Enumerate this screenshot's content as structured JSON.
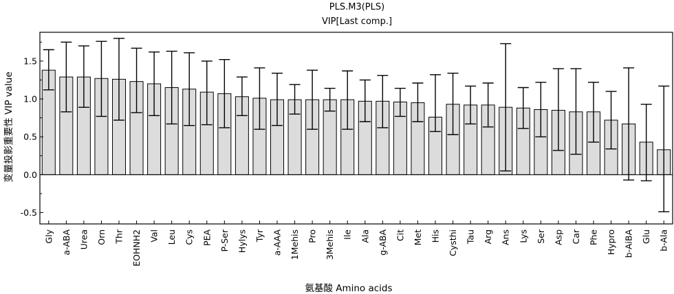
{
  "chart_data": {
    "type": "bar",
    "title": "PLS.M3(PLS)",
    "subtitle": "VIP[Last comp.]",
    "xlabel": "氨基酸 Amino acids",
    "ylabel": "变量投影重要性 VIP value",
    "ylim": [
      -0.65,
      1.88
    ],
    "yticks": [
      -0.5,
      0.0,
      0.5,
      1.0,
      1.5
    ],
    "ytick_labels": [
      "-0.5",
      "0.0",
      "0.5",
      "1.0",
      "1.5"
    ],
    "grid": false,
    "bar_color": "#dcdcdc",
    "categories": [
      "Gly",
      "a-ABA",
      "Urea",
      "Orn",
      "Thr",
      "EOHNH2",
      "Val",
      "Leu",
      "Cys",
      "PEA",
      "P-Ser",
      "Hylys",
      "Tyr",
      "a-AAA",
      "1Mehis",
      "Pro",
      "3Mehis",
      "Ile",
      "Ala",
      "g-ABA",
      "Cit",
      "Met",
      "His",
      "Cysthi",
      "Tau",
      "Arg",
      "Ans",
      "Lys",
      "Ser",
      "Asp",
      "Car",
      "Phe",
      "Hypro",
      "b-AiBA",
      "Glu",
      "b-Ala"
    ],
    "values": [
      1.38,
      1.29,
      1.29,
      1.27,
      1.26,
      1.23,
      1.2,
      1.15,
      1.13,
      1.09,
      1.07,
      1.03,
      1.01,
      0.99,
      0.99,
      0.99,
      0.99,
      0.99,
      0.97,
      0.97,
      0.96,
      0.95,
      0.76,
      0.93,
      0.92,
      0.92,
      0.89,
      0.88,
      0.86,
      0.85,
      0.83,
      0.83,
      0.72,
      0.67,
      0.43,
      0.33
    ],
    "error_low": [
      1.12,
      0.83,
      0.89,
      0.77,
      0.72,
      0.82,
      0.78,
      0.67,
      0.65,
      0.66,
      0.62,
      0.78,
      0.6,
      0.65,
      0.8,
      0.6,
      0.84,
      0.6,
      0.7,
      0.62,
      0.77,
      0.7,
      0.57,
      0.53,
      0.67,
      0.63,
      0.05,
      0.61,
      0.5,
      0.32,
      0.27,
      0.43,
      0.34,
      -0.07,
      -0.08,
      -0.49
    ],
    "error_high": [
      1.65,
      1.75,
      1.7,
      1.76,
      1.8,
      1.67,
      1.62,
      1.63,
      1.61,
      1.5,
      1.52,
      1.29,
      1.41,
      1.34,
      1.19,
      1.38,
      1.14,
      1.37,
      1.25,
      1.31,
      1.14,
      1.21,
      1.32,
      1.34,
      1.17,
      1.21,
      1.73,
      1.15,
      1.22,
      1.4,
      1.4,
      1.22,
      1.1,
      1.41,
      0.93,
      1.17
    ]
  }
}
